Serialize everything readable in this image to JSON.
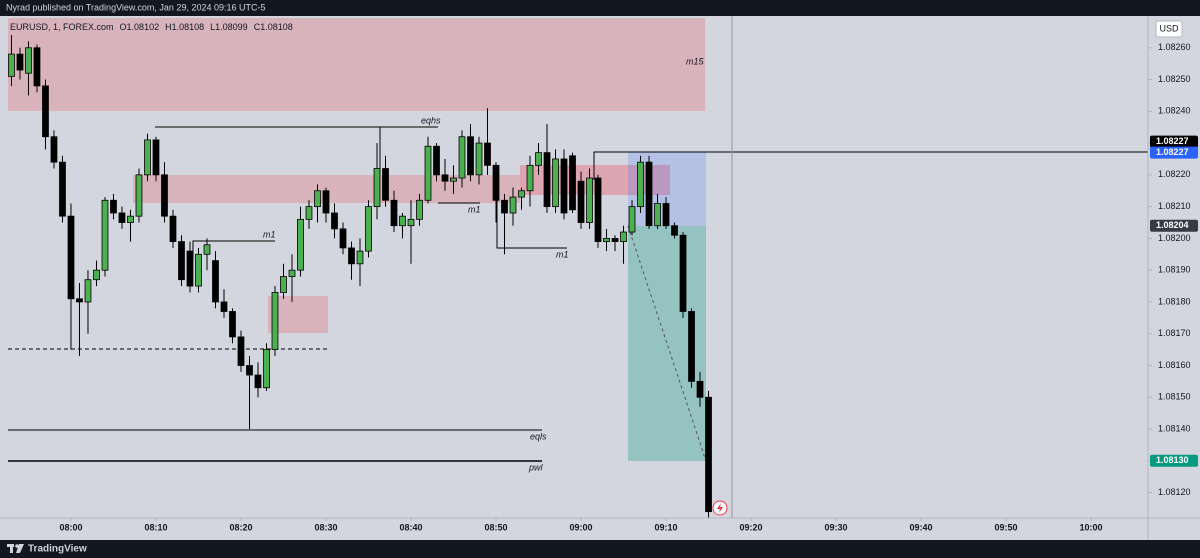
{
  "header": {
    "published": "Nyrad published on TradingView.com, Jan 29, 2024 09:16 UTC-5"
  },
  "footer": {
    "brand": "TradingView"
  },
  "chart_data": {
    "type": "candlestick",
    "legend": {
      "symbol": "EURUSD, 1, FOREX.com",
      "ohlc": [
        {
          "key": "O",
          "value": 1.08102
        },
        {
          "key": "H",
          "value": 1.08108
        },
        {
          "key": "L",
          "value": 1.08099
        },
        {
          "key": "C",
          "value": 1.08108
        }
      ]
    },
    "currency": "USD",
    "up_color": "#4caf50",
    "down_color": "#000000",
    "x": [
      473,
      474,
      475,
      476,
      477,
      478,
      479,
      480,
      481,
      482,
      483,
      484,
      485,
      486,
      487,
      488,
      489,
      490,
      491,
      492,
      493,
      494,
      495,
      496,
      497,
      498,
      499,
      500,
      501,
      502,
      503,
      504,
      505,
      506,
      507,
      508,
      509,
      510,
      511,
      512,
      513,
      514,
      515,
      516,
      517,
      518,
      519,
      520,
      521,
      522,
      523,
      524,
      525,
      526,
      527,
      528,
      529,
      530,
      531,
      532,
      533,
      534,
      535,
      536,
      537,
      538,
      539,
      540,
      541,
      542,
      543,
      544,
      545,
      546,
      547,
      548,
      549,
      550,
      551,
      552,
      553,
      554,
      555
    ],
    "open": [
      1.08251,
      1.08258,
      1.08252,
      1.0826,
      1.08248,
      1.08232,
      1.08224,
      1.08207,
      1.08181,
      1.0818,
      1.08187,
      1.0819,
      1.08212,
      1.08208,
      1.08205,
      1.08207,
      1.0822,
      1.08231,
      1.0822,
      1.08207,
      1.08199,
      1.08196,
      1.08185,
      1.08195,
      1.08193,
      1.0818,
      1.08177,
      1.08169,
      1.0816,
      1.08157,
      1.08153,
      1.08165,
      1.08183,
      1.08188,
      1.0819,
      1.08206,
      1.0821,
      1.08215,
      1.08208,
      1.08203,
      1.08197,
      1.08192,
      1.08196,
      1.0821,
      1.08222,
      1.08212,
      1.08204,
      1.08204,
      1.08206,
      1.08212,
      1.08229,
      1.0822,
      1.08218,
      1.08219,
      1.08232,
      1.0822,
      1.0823,
      1.08223,
      1.08212,
      1.08208,
      1.08213,
      1.08215,
      1.08223,
      1.08227,
      1.0821,
      1.08225,
      1.08226,
      1.08218,
      1.08205,
      1.08219,
      1.08199,
      1.082,
      1.08199,
      1.08202,
      1.0821,
      1.08224,
      1.08204,
      1.08211,
      1.08204,
      1.08201,
      1.08177,
      1.08155,
      1.0815
    ],
    "high": [
      1.08264,
      1.0826,
      1.08262,
      1.08261,
      1.0825,
      1.08234,
      1.08226,
      1.08211,
      1.08186,
      1.0819,
      1.08193,
      1.08213,
      1.08214,
      1.0821,
      1.08209,
      1.08222,
      1.08233,
      1.08232,
      1.08224,
      1.08209,
      1.08201,
      1.08199,
      1.08197,
      1.082,
      1.08196,
      1.08184,
      1.08178,
      1.08171,
      1.08163,
      1.08161,
      1.08167,
      1.08185,
      1.08192,
      1.08195,
      1.0821,
      1.08212,
      1.08217,
      1.08216,
      1.08211,
      1.08205,
      1.08199,
      1.082,
      1.08212,
      1.0823,
      1.08226,
      1.08215,
      1.08208,
      1.08212,
      1.08214,
      1.08232,
      1.0823,
      1.08225,
      1.08223,
      1.08234,
      1.08236,
      1.08232,
      1.08241,
      1.08224,
      1.08214,
      1.08216,
      1.08216,
      1.08226,
      1.0823,
      1.08236,
      1.08228,
      1.08228,
      1.08227,
      1.08221,
      1.08222,
      1.0822,
      1.08203,
      1.08201,
      1.08204,
      1.08212,
      1.08226,
      1.08226,
      1.08214,
      1.08213,
      1.08205,
      1.08202,
      1.08178,
      1.08158,
      1.08152
    ],
    "low": [
      1.08248,
      1.0825,
      1.08245,
      1.08246,
      1.08228,
      1.08222,
      1.08205,
      1.08165,
      1.08163,
      1.0817,
      1.08185,
      1.08188,
      1.08206,
      1.08203,
      1.08199,
      1.08205,
      1.08218,
      1.08218,
      1.08205,
      1.08197,
      1.08185,
      1.08183,
      1.08183,
      1.0819,
      1.08178,
      1.08175,
      1.08167,
      1.08158,
      1.0814,
      1.0815,
      1.08152,
      1.08163,
      1.08181,
      1.0818,
      1.08188,
      1.08203,
      1.08205,
      1.08205,
      1.082,
      1.08195,
      1.08187,
      1.08185,
      1.08194,
      1.08206,
      1.0821,
      1.08202,
      1.082,
      1.08192,
      1.08204,
      1.08211,
      1.08218,
      1.08215,
      1.08214,
      1.08216,
      1.08218,
      1.08217,
      1.0822,
      1.08205,
      1.08195,
      1.08204,
      1.08209,
      1.0821,
      1.0822,
      1.08208,
      1.08208,
      1.08206,
      1.08208,
      1.08203,
      1.08203,
      1.08197,
      1.08196,
      1.08196,
      1.08192,
      1.08201,
      1.08208,
      1.08203,
      1.08203,
      1.08203,
      1.082,
      1.08175,
      1.08153,
      1.08147,
      1.0811
    ],
    "close": [
      1.08258,
      1.08253,
      1.0826,
      1.08248,
      1.08232,
      1.08224,
      1.08207,
      1.08181,
      1.0818,
      1.08187,
      1.0819,
      1.08212,
      1.08208,
      1.08205,
      1.08207,
      1.0822,
      1.08231,
      1.0822,
      1.08207,
      1.08199,
      1.08187,
      1.08185,
      1.08195,
      1.08198,
      1.0818,
      1.08177,
      1.08169,
      1.0816,
      1.08157,
      1.08153,
      1.08165,
      1.08183,
      1.08188,
      1.0819,
      1.08206,
      1.0821,
      1.08215,
      1.08208,
      1.08203,
      1.08197,
      1.08192,
      1.08196,
      1.0821,
      1.08222,
      1.08212,
      1.08204,
      1.08207,
      1.08206,
      1.08212,
      1.08229,
      1.0822,
      1.08218,
      1.08219,
      1.08232,
      1.0822,
      1.0823,
      1.08223,
      1.08212,
      1.08208,
      1.08213,
      1.08215,
      1.08223,
      1.08227,
      1.0821,
      1.08225,
      1.08208,
      1.08209,
      1.08205,
      1.08219,
      1.08199,
      1.082,
      1.08199,
      1.08202,
      1.0821,
      1.08224,
      1.08204,
      1.08211,
      1.08204,
      1.08201,
      1.08177,
      1.08155,
      1.0815,
      1.08114
    ],
    "xlim": [
      471.65,
      606.7
    ],
    "xticks": [
      {
        "value": 480,
        "label": "08:00"
      },
      {
        "value": 490,
        "label": "08:10"
      },
      {
        "value": 500,
        "label": "08:20"
      },
      {
        "value": 510,
        "label": "08:30"
      },
      {
        "value": 520,
        "label": "08:40"
      },
      {
        "value": 530,
        "label": "08:50"
      },
      {
        "value": 540,
        "label": "09:00"
      },
      {
        "value": 550,
        "label": "09:10"
      },
      {
        "value": 560,
        "label": "09:20"
      },
      {
        "value": 570,
        "label": "09:30"
      },
      {
        "value": 580,
        "label": "09:40"
      },
      {
        "value": 590,
        "label": "09:50"
      },
      {
        "value": 600,
        "label": "10:00"
      }
    ],
    "ylim": [
      1.08112,
      1.0827
    ],
    "yticks": [
      {
        "value": 1.0826,
        "label": "1.08260"
      },
      {
        "value": 1.0825,
        "label": "1.08250"
      },
      {
        "value": 1.0824,
        "label": "1.08240"
      },
      {
        "value": 1.0823,
        "label": "1.08230"
      },
      {
        "value": 1.0822,
        "label": "1.08220"
      },
      {
        "value": 1.0821,
        "label": "1.08210"
      },
      {
        "value": 1.082,
        "label": "1.08200"
      },
      {
        "value": 1.0819,
        "label": "1.08190"
      },
      {
        "value": 1.0818,
        "label": "1.08180"
      },
      {
        "value": 1.0817,
        "label": "1.08170"
      },
      {
        "value": 1.0816,
        "label": "1.08160"
      },
      {
        "value": 1.0815,
        "label": "1.08150"
      },
      {
        "value": 1.0814,
        "label": "1.08140"
      },
      {
        "value": 1.0813,
        "label": "1.08130"
      },
      {
        "value": 1.0812,
        "label": "1.08120"
      }
    ],
    "price_labels": [
      {
        "value": 1.08227,
        "label": "1.08227",
        "color": "#000000"
      },
      {
        "value": 1.08227,
        "label": "1.08227",
        "color": "#2962ff"
      },
      {
        "value": 1.08204,
        "label": "1.08204",
        "color": "#363a45"
      },
      {
        "value": 1.0813,
        "label": "1.08130",
        "color": "#089981"
      }
    ],
    "grid": false,
    "annotations": [
      "m15",
      "eqhs",
      "m1",
      "m1",
      "m1",
      "eqls",
      "pwl"
    ]
  }
}
